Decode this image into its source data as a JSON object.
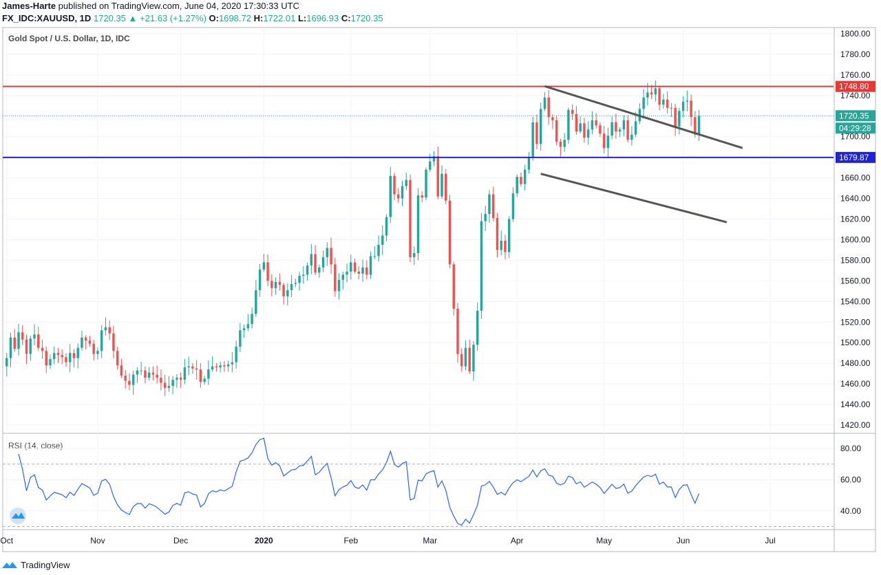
{
  "header": {
    "publisher": "James-Harte",
    "published_text": "published on TradingView.com, June 04, 2020 17:30:33 UTC",
    "symbol": "FX_IDC:XAUUSD, 1D",
    "last": "1720.35",
    "change": "+21.63 (+1.27%)",
    "open_label": "O:",
    "open": "1698.72",
    "high_label": "H:",
    "high": "1722.01",
    "low_label": "L:",
    "low": "1696.93",
    "close_label": "C:",
    "close": "1720.35"
  },
  "footer": {
    "brand": "TradingView",
    "logo_icon": "tradingview-logo-icon"
  },
  "colors": {
    "up": "#26a69a",
    "down": "#ef5350",
    "resistance": "#e53935",
    "support": "#1e22d8",
    "rsi": "#2962ff",
    "trendline": "#555555",
    "grid": "#f0f3fa"
  },
  "chart_data": [
    {
      "type": "candlestick",
      "title": "Gold Spot / U.S. Dollar, 1D, IDC",
      "ylim": [
        1412,
        1806
      ],
      "y_ticks": [
        1420,
        1440,
        1460,
        1480,
        1500,
        1520,
        1540,
        1560,
        1580,
        1600,
        1620,
        1640,
        1660,
        1680,
        1700,
        1720,
        1740,
        1760,
        1780,
        1800
      ],
      "y_tick_labels": [
        "1420.00",
        "1440.00",
        "1460.00",
        "1480.00",
        "1500.00",
        "1520.00",
        "1540.00",
        "1560.00",
        "1580.00",
        "1600.00",
        "1620.00",
        "1640.00",
        "1660.00",
        "1680.00",
        "1700.00",
        "1720.00",
        "1740.00",
        "1760.00",
        "1780.00",
        "1800.00"
      ],
      "x_labels": [
        {
          "label": "Oct",
          "index": 1
        },
        {
          "label": "Nov",
          "index": 24
        },
        {
          "label": "Dec",
          "index": 45
        },
        {
          "label": "2020",
          "index": 66
        },
        {
          "label": "Feb",
          "index": 88
        },
        {
          "label": "Mar",
          "index": 108
        },
        {
          "label": "Apr",
          "index": 130
        },
        {
          "label": "May",
          "index": 152
        },
        {
          "label": "Jun",
          "index": 172
        },
        {
          "label": "Jul",
          "index": 194
        }
      ],
      "x_range": [
        0,
        210
      ],
      "closes": [
        1485,
        1505,
        1494,
        1510,
        1503,
        1489,
        1504,
        1508,
        1495,
        1492,
        1478,
        1484,
        1490,
        1488,
        1486,
        1481,
        1490,
        1485,
        1495,
        1505,
        1502,
        1499,
        1489,
        1492,
        1512,
        1515,
        1509,
        1492,
        1478,
        1468,
        1463,
        1459,
        1469,
        1473,
        1473,
        1466,
        1471,
        1469,
        1466,
        1461,
        1456,
        1458,
        1464,
        1466,
        1464,
        1476,
        1477,
        1475,
        1474,
        1462,
        1465,
        1474,
        1477,
        1476,
        1478,
        1477,
        1479,
        1481,
        1496,
        1512,
        1514,
        1518,
        1528,
        1551,
        1571,
        1578,
        1560,
        1553,
        1559,
        1556,
        1545,
        1551,
        1557,
        1558,
        1565,
        1566,
        1575,
        1586,
        1568,
        1573,
        1583,
        1592,
        1576,
        1550,
        1561,
        1566,
        1569,
        1578,
        1569,
        1567,
        1573,
        1566,
        1584,
        1584,
        1595,
        1604,
        1622,
        1662,
        1644,
        1640,
        1652,
        1658,
        1583,
        1587,
        1643,
        1641,
        1668,
        1676,
        1681,
        1642,
        1664,
        1638,
        1576,
        1533,
        1489,
        1477,
        1495,
        1472,
        1498,
        1531,
        1618,
        1625,
        1644,
        1621,
        1590,
        1599,
        1588,
        1620,
        1645,
        1661,
        1654,
        1668,
        1680,
        1714,
        1693,
        1727,
        1738,
        1719,
        1716,
        1695,
        1690,
        1697,
        1726,
        1722,
        1705,
        1713,
        1699,
        1707,
        1716,
        1711,
        1703,
        1689,
        1701,
        1714,
        1705,
        1707,
        1716,
        1697,
        1702,
        1715,
        1727,
        1738,
        1743,
        1741,
        1747,
        1731,
        1736,
        1728,
        1728,
        1710,
        1725,
        1734,
        1735,
        1719,
        1702,
        1720.35
      ],
      "support": {
        "label": "1679.87",
        "value": 1679.87
      },
      "resistance": {
        "label": "1748.80",
        "value": 1748.8
      },
      "last_price_label": "1720.35",
      "countdown_label": "04:29:28",
      "channel": {
        "upper": {
          "from": {
            "index": 137,
            "value": 1749
          },
          "to": {
            "index": 187,
            "value": 1689
          }
        },
        "lower": {
          "from": {
            "index": 136,
            "value": 1664
          },
          "to": {
            "index": 183,
            "value": 1617
          }
        }
      }
    },
    {
      "type": "line",
      "title": "RSI (14, close)",
      "ylim": [
        28,
        88
      ],
      "y_ticks": [
        40,
        60,
        80
      ],
      "y_tick_labels": [
        "40.00",
        "60.00",
        "80.00"
      ],
      "bands": [
        30,
        70
      ]
    }
  ]
}
